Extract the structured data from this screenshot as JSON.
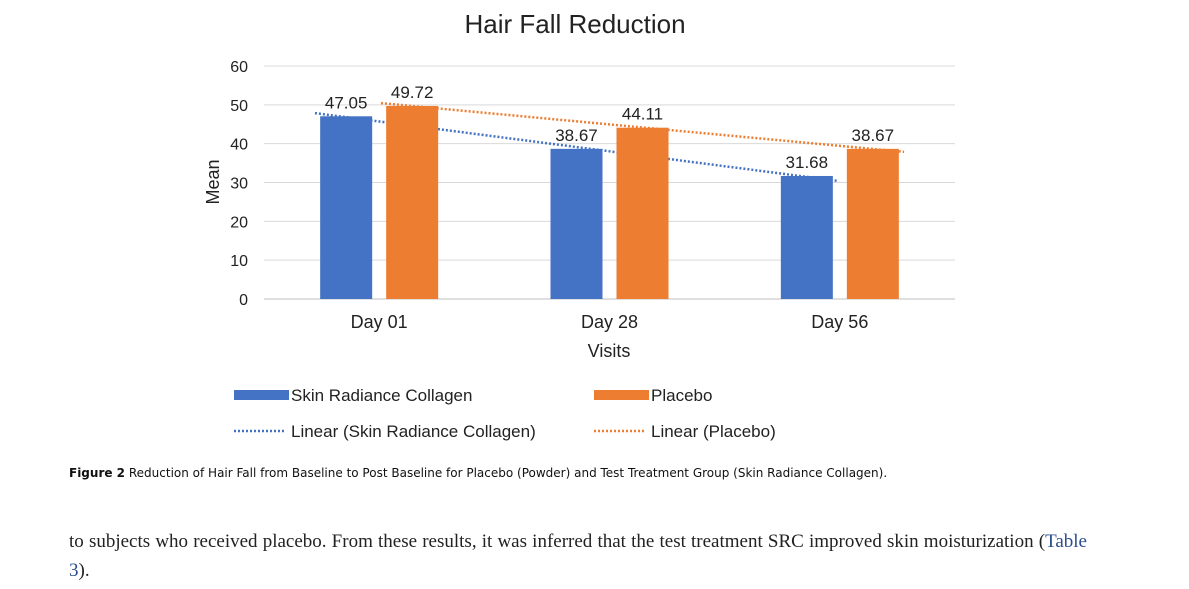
{
  "chart_data": {
    "type": "bar",
    "title": "Hair Fall Reduction",
    "xlabel": "Visits",
    "ylabel": "Mean",
    "categories": [
      "Day 01",
      "Day 28",
      "Day 56"
    ],
    "ylim": [
      0,
      60
    ],
    "yticks": [
      0,
      10,
      20,
      30,
      40,
      50,
      60
    ],
    "grid": true,
    "legend_position": "bottom",
    "series": [
      {
        "name": "Skin Radiance Collagen",
        "values": [
          47.05,
          38.67,
          31.68
        ],
        "labels": [
          "47.05",
          "38.67",
          "31.68"
        ],
        "color": "#4472c4"
      },
      {
        "name": "Placebo",
        "values": [
          49.72,
          44.11,
          38.67
        ],
        "labels": [
          "49.72",
          "44.11",
          "38.67"
        ],
        "color": "#ed7d31"
      }
    ],
    "trendlines": [
      {
        "name": "Linear (Skin Radiance Collagen)",
        "series_index": 0,
        "color": "#4472c4",
        "style": "dotted"
      },
      {
        "name": "Linear (Placebo)",
        "series_index": 1,
        "color": "#ed7d31",
        "style": "dotted"
      }
    ]
  },
  "caption": {
    "label": "Figure 2",
    "text": "Reduction of Hair Fall from Baseline to Post Baseline for Placebo (Powder) and Test Treatment Group (Skin Radiance Collagen)."
  },
  "body_text": {
    "before_ref": "to subjects who received placebo. From these results, it was inferred that the test treatment SRC improved skin moisturization (",
    "ref": "Table 3",
    "after_ref": ")."
  }
}
